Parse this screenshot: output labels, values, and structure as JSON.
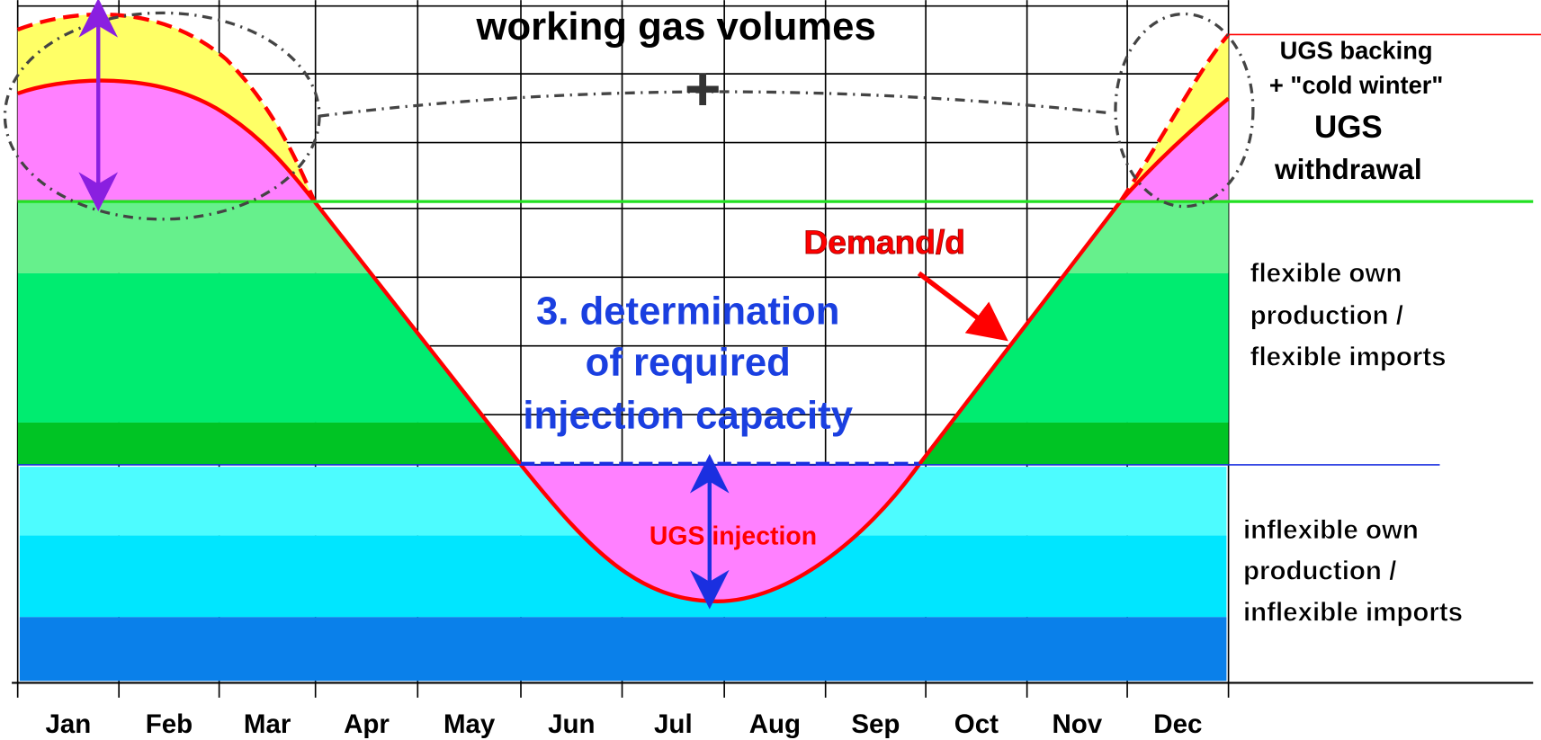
{
  "title": "working gas volumes",
  "plus": "+",
  "legend": {
    "ugs_backing": [
      "UGS backing",
      "+ \"cold winter\""
    ],
    "ugs_withdrawal": [
      "UGS",
      "withdrawal"
    ],
    "flexible": [
      "flexible own",
      "production /",
      "flexible imports"
    ],
    "inflexible": [
      "inflexible own",
      "production /",
      "inflexible imports"
    ]
  },
  "determination": [
    "3. determination",
    "of required",
    "injection capacity"
  ],
  "demand_label": "Demand/d",
  "injection_label": "UGS injection",
  "months": [
    "Jan",
    "Feb",
    "Mar",
    "Apr",
    "May",
    "Jun",
    "Jul",
    "Aug",
    "Sep",
    "Oct",
    "Nov",
    "Dec"
  ]
}
